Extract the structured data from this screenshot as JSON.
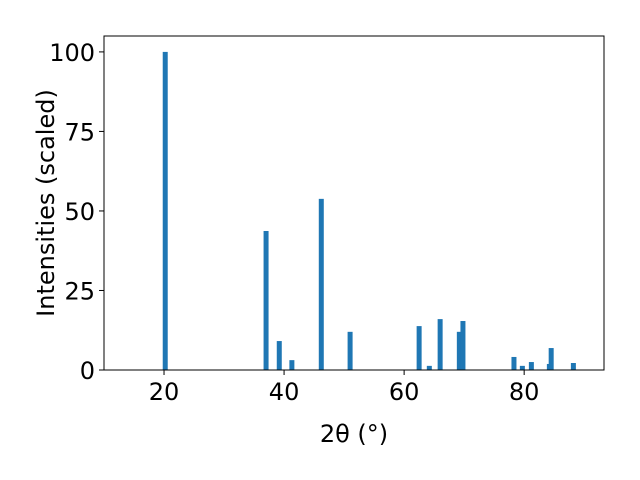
{
  "chart_data": {
    "type": "bar",
    "xlabel": "2θ (°)",
    "ylabel": "Intensities (scaled)",
    "color": "#1f77b4",
    "x": [
      20.2,
      37.0,
      39.2,
      41.3,
      46.2,
      51.0,
      62.5,
      64.2,
      66.0,
      69.2,
      69.8,
      78.3,
      79.7,
      81.2,
      84.2,
      84.5,
      88.2
    ],
    "values": [
      100,
      43.7,
      9.1,
      3.1,
      53.8,
      12.0,
      13.8,
      1.3,
      16.0,
      12.0,
      15.4,
      4.1,
      1.3,
      2.5,
      1.9,
      6.9,
      2.2
    ],
    "xlim": [
      10.0,
      93.3
    ],
    "ylim": [
      0,
      105
    ],
    "xticks": [
      20,
      40,
      60,
      80
    ],
    "yticks": [
      0,
      25,
      50,
      75,
      100
    ],
    "grid": false
  }
}
